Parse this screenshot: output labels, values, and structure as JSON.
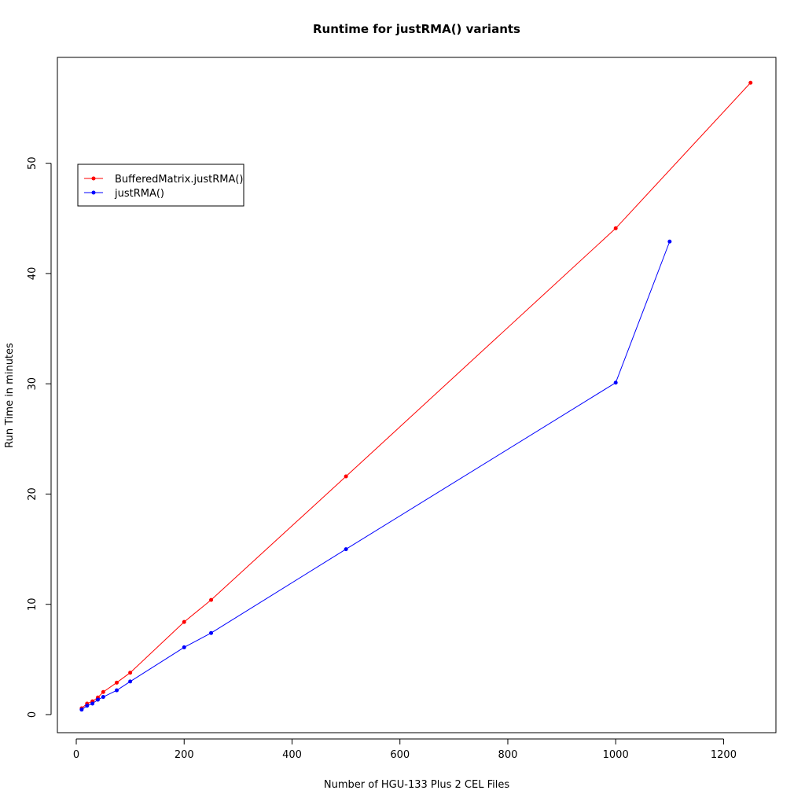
{
  "chart_data": {
    "type": "line",
    "title": "Runtime for justRMA() variants",
    "x_label": "Number of HGU-133 Plus 2 CEL Files",
    "y_label": "Run Time in minutes",
    "xlim": [
      -35,
      1297
    ],
    "ylim": [
      -1.64,
      59.6
    ],
    "xticks": [
      0,
      200,
      400,
      600,
      800,
      1000,
      1200
    ],
    "yticks": [
      0,
      10,
      20,
      30,
      40,
      50
    ],
    "legend": "top-left",
    "series": [
      {
        "name": "BufferedMatrix.justRMA()",
        "color": "#ff0000",
        "x": [
          10,
          20,
          30,
          40,
          50,
          75,
          100,
          200,
          250,
          500,
          1000,
          1250
        ],
        "values": [
          0.57,
          1.0,
          1.2,
          1.55,
          2.05,
          2.9,
          3.8,
          8.4,
          10.4,
          21.6,
          44.1,
          57.3
        ]
      },
      {
        "name": "justRMA()",
        "color": "#0000ff",
        "x": [
          10,
          20,
          30,
          40,
          50,
          75,
          100,
          200,
          250,
          500,
          1000,
          1100
        ],
        "values": [
          0.45,
          0.8,
          1.0,
          1.35,
          1.6,
          2.2,
          3.0,
          6.1,
          7.4,
          15.0,
          30.1,
          42.9
        ]
      }
    ]
  }
}
